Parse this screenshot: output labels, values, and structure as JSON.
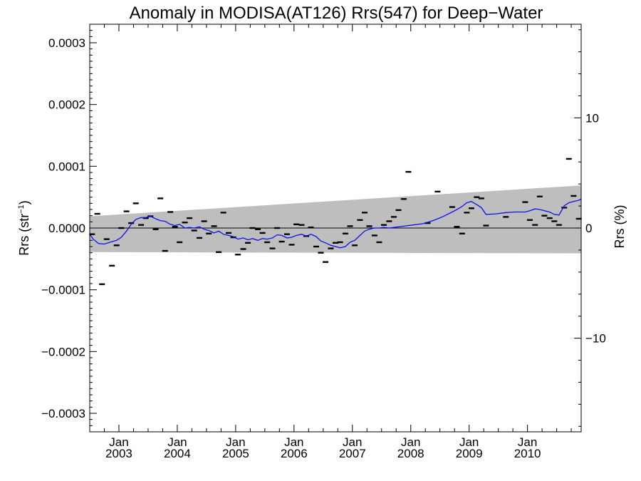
{
  "chart_data": {
    "type": "scatter",
    "title": "Anomaly in MODISA(AT126) Rrs(547) for Deep−Water",
    "ylabel_left": {
      "base": "Rrs (str",
      "sup": "−1",
      "close": ")"
    },
    "ylabel_right": "Rrs (%)",
    "xlim": [
      2002.5,
      2010.92
    ],
    "ylim": [
      -0.00033,
      0.00033
    ],
    "ylim_right": [
      -18.5,
      18.5
    ],
    "x_ticks": [
      {
        "value": 2003.0,
        "month": "Jan",
        "year": "2003"
      },
      {
        "value": 2004.0,
        "month": "Jan",
        "year": "2004"
      },
      {
        "value": 2005.0,
        "month": "Jan",
        "year": "2005"
      },
      {
        "value": 2006.0,
        "month": "Jan",
        "year": "2006"
      },
      {
        "value": 2007.0,
        "month": "Jan",
        "year": "2007"
      },
      {
        "value": 2008.0,
        "month": "Jan",
        "year": "2008"
      },
      {
        "value": 2009.0,
        "month": "Jan",
        "year": "2009"
      },
      {
        "value": 2010.0,
        "month": "Jan",
        "year": "2010"
      }
    ],
    "y_ticks_left": [
      {
        "value": 0.0003,
        "label": "0.0003"
      },
      {
        "value": 0.0002,
        "label": "0.0002"
      },
      {
        "value": 0.0001,
        "label": "0.0001"
      },
      {
        "value": 0.0,
        "label": "0.0000"
      },
      {
        "value": -0.0001,
        "label": "−0.0001"
      },
      {
        "value": -0.0002,
        "label": "−0.0002"
      },
      {
        "value": -0.0003,
        "label": "−0.0003"
      }
    ],
    "y_ticks_right": [
      {
        "value": 10,
        "label": "10"
      },
      {
        "value": 0,
        "label": "0"
      },
      {
        "value": -10,
        "label": "−10"
      }
    ],
    "band": {
      "x": [
        2002.5,
        2010.92
      ],
      "upper": [
        1.9e-05,
        6.9e-05
      ],
      "lower": [
        -3.9e-05,
        -4.1e-05
      ]
    },
    "zero_line": 0.0,
    "monthly_points": {
      "x": [
        2002.54,
        2002.63,
        2002.71,
        2002.79,
        2002.88,
        2002.96,
        2003.04,
        2003.13,
        2003.21,
        2003.29,
        2003.38,
        2003.46,
        2003.54,
        2003.63,
        2003.71,
        2003.79,
        2003.88,
        2003.96,
        2004.04,
        2004.13,
        2004.21,
        2004.29,
        2004.38,
        2004.46,
        2004.54,
        2004.63,
        2004.71,
        2004.79,
        2004.88,
        2004.96,
        2005.04,
        2005.13,
        2005.21,
        2005.29,
        2005.38,
        2005.46,
        2005.54,
        2005.63,
        2005.71,
        2005.79,
        2005.88,
        2005.96,
        2006.04,
        2006.13,
        2006.21,
        2006.29,
        2006.38,
        2006.46,
        2006.54,
        2006.63,
        2006.71,
        2006.79,
        2006.88,
        2006.96,
        2007.04,
        2007.13,
        2007.21,
        2007.29,
        2007.38,
        2007.46,
        2007.54,
        2007.63,
        2007.71,
        2007.79,
        2007.88,
        2007.96,
        2008.29,
        2008.46,
        2008.71,
        2008.79,
        2008.88,
        2008.96,
        2009.04,
        2009.13,
        2009.21,
        2009.29,
        2009.63,
        2009.96,
        2010.04,
        2010.13,
        2010.21,
        2010.29,
        2010.38,
        2010.46,
        2010.54,
        2010.63,
        2010.71,
        2010.79,
        2010.88
      ],
      "y": [
        -1e-05,
        2.3e-05,
        -9.1e-05,
        -1.8e-05,
        -6.1e-05,
        -2.8e-05,
        0.0,
        2.7e-05,
        8e-06,
        4e-05,
        5e-06,
        1.6e-05,
        1.9e-05,
        -2e-06,
        4.8e-05,
        -3.7e-05,
        2.6e-05,
        2e-06,
        -2.3e-05,
        9e-06,
        1.6e-05,
        -4e-06,
        -1.6e-05,
        1.1e-05,
        -9e-06,
        3e-06,
        -3.9e-05,
        2.5e-05,
        -8e-06,
        -1.5e-05,
        -4.3e-05,
        -3.4e-05,
        -2.4e-05,
        0.0,
        -2e-06,
        -8e-06,
        -2.3e-05,
        -3.3e-05,
        0.0,
        -2.2e-05,
        -1e-05,
        -2.7e-05,
        6e-06,
        5e-06,
        -1.3e-05,
        1e-06,
        -3e-05,
        -4e-05,
        -5.5e-05,
        -3.3e-05,
        -2.4e-05,
        -2.3e-05,
        -9e-06,
        3e-06,
        -2.8e-05,
        1.3e-05,
        2.5e-05,
        3e-06,
        -1.2e-05,
        -2.3e-05,
        5e-06,
        1.1e-05,
        1.8e-05,
        2.9e-05,
        4.7e-05,
        9.1e-05,
        8e-06,
        5.9e-05,
        3.4e-05,
        2e-06,
        -9e-06,
        2.5e-05,
        3.2e-05,
        5e-05,
        4.8e-05,
        4e-06,
        1.8e-05,
        4.2e-05,
        1.3e-05,
        5e-06,
        5.1e-05,
        2e-05,
        1.6e-05,
        1.1e-05,
        5e-06,
        3.3e-05,
        0.000112,
        5.2e-05,
        1.5e-05
      ]
    },
    "running_mean": {
      "color": "#1010ee",
      "x": [
        2002.5,
        2002.56,
        2002.65,
        2002.75,
        2002.85,
        2002.96,
        2003.04,
        2003.13,
        2003.21,
        2003.29,
        2003.38,
        2003.46,
        2003.54,
        2003.63,
        2003.71,
        2003.79,
        2003.88,
        2003.96,
        2004.04,
        2004.13,
        2004.21,
        2004.29,
        2004.38,
        2004.46,
        2004.54,
        2004.63,
        2004.71,
        2004.79,
        2004.88,
        2004.96,
        2005.04,
        2005.13,
        2005.21,
        2005.29,
        2005.38,
        2005.46,
        2005.54,
        2005.63,
        2005.71,
        2005.79,
        2005.88,
        2005.96,
        2006.04,
        2006.13,
        2006.21,
        2006.29,
        2006.38,
        2006.46,
        2006.54,
        2006.63,
        2006.71,
        2006.79,
        2006.88,
        2006.96,
        2007.04,
        2007.13,
        2007.21,
        2007.29,
        2007.38,
        2007.46,
        2007.54,
        2007.63,
        2007.71,
        2007.79,
        2007.88,
        2007.96,
        2008.04,
        2008.21,
        2008.38,
        2008.54,
        2008.71,
        2008.79,
        2008.88,
        2008.96,
        2009.04,
        2009.13,
        2009.21,
        2009.29,
        2009.46,
        2009.63,
        2009.79,
        2009.96,
        2010.04,
        2010.13,
        2010.21,
        2010.29,
        2010.38,
        2010.46,
        2010.54,
        2010.63,
        2010.71,
        2010.79,
        2010.88,
        2010.92
      ],
      "y": [
        -1e-05,
        -1.8e-05,
        -2.5e-05,
        -2.6e-05,
        -2.3e-05,
        -2e-05,
        -1.5e-05,
        -5e-06,
        6e-06,
        1.4e-05,
        1.7e-05,
        1.7e-05,
        1.9e-05,
        1.5e-05,
        1.2e-05,
        1.1e-05,
        6e-06,
        4e-06,
        6e-06,
        0.0,
        1e-06,
        0.0,
        2e-06,
        -2e-06,
        -4e-06,
        -8e-06,
        -5e-06,
        -1e-05,
        -1.2e-05,
        -1.4e-05,
        -1.8e-05,
        -1.6e-05,
        -1.9e-05,
        -1.7e-05,
        -2e-05,
        -1.7e-05,
        -1.8e-05,
        -1.6e-05,
        -1.1e-05,
        -1.2e-05,
        -1.6e-05,
        -1.5e-05,
        -1.2e-05,
        -1e-05,
        -1.3e-05,
        -1e-05,
        -1.4e-05,
        -2.1e-05,
        -2.4e-05,
        -2.8e-05,
        -3e-05,
        -3.2e-05,
        -3e-05,
        -2.3e-05,
        -2e-05,
        -1.2e-05,
        -5e-06,
        -2e-06,
        0.0,
        0.0,
        1e-06,
        0.0,
        1e-06,
        2e-06,
        3e-06,
        4e-06,
        5e-06,
        7e-06,
        1.2e-05,
        1.8e-05,
        2.6e-05,
        3e-05,
        3.5e-05,
        4.1e-05,
        4.3e-05,
        3.8e-05,
        3.3e-05,
        2.2e-05,
        2.3e-05,
        2.5e-05,
        2.6e-05,
        2.6e-05,
        2.8e-05,
        3.1e-05,
        3e-05,
        2.8e-05,
        2.6e-05,
        2.2e-05,
        2.1e-05,
        3.6e-05,
        4.1e-05,
        4.3e-05,
        4.5e-05,
        4.7e-05
      ]
    },
    "grid": false,
    "legend": "none"
  }
}
